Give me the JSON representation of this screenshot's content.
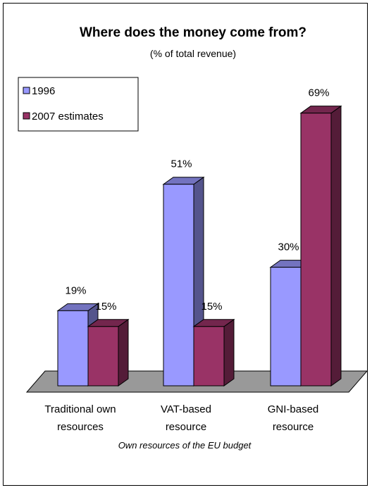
{
  "chart_data": {
    "type": "bar",
    "title": "Where does the money come from?",
    "subtitle": "(% of total revenue)",
    "categories": [
      [
        "Traditional own",
        "resources"
      ],
      [
        "VAT-based",
        "resource"
      ],
      [
        "GNI-based",
        "resource"
      ]
    ],
    "series": [
      {
        "name": "1996",
        "values": [
          19,
          51,
          30
        ],
        "labels": [
          "19%",
          "51%",
          "30%"
        ],
        "color": "#9999ff"
      },
      {
        "name": "2007 estimates",
        "values": [
          15,
          15,
          69
        ],
        "labels": [
          "15%",
          "15%",
          "69%"
        ],
        "color": "#993366"
      }
    ],
    "xlabel": "Own resources of the EU budget",
    "ylim": [
      0,
      75
    ],
    "grid": false,
    "legend": "top-left",
    "three_d": true
  }
}
